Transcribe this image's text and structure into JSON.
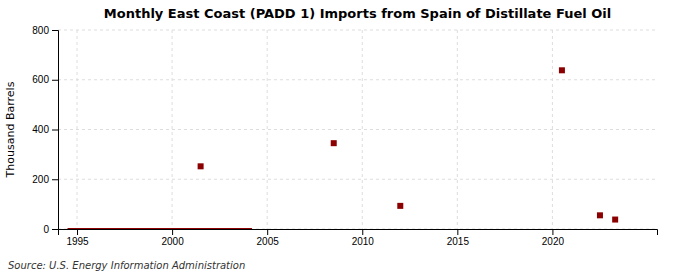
{
  "chart_data": {
    "type": "scatter",
    "title": "Monthly East Coast (PADD 1) Imports from Spain of Distillate Fuel Oil",
    "y_label": "Thousand Barrels",
    "source": "Source: U.S. Energy Information Administration",
    "series": [
      {
        "type": "line",
        "color": "#8b0000",
        "x": [
          1994.5,
          2004.2
        ],
        "values": [
          0,
          0
        ]
      },
      {
        "type": "scatter",
        "color": "#8b0000",
        "marker": "square",
        "x": [
          2001.5,
          2008.5,
          2012.0,
          2020.5,
          2022.5,
          2023.3
        ],
        "values": [
          252,
          345,
          93,
          638,
          55,
          38
        ]
      }
    ],
    "xlim": [
      1994.0,
      2025.5
    ],
    "xticks": [
      1995,
      2000,
      2005,
      2010,
      2015,
      2020
    ],
    "ylim": [
      0,
      800
    ],
    "yticks": [
      0,
      200,
      400,
      600,
      800
    ],
    "grid": true
  }
}
